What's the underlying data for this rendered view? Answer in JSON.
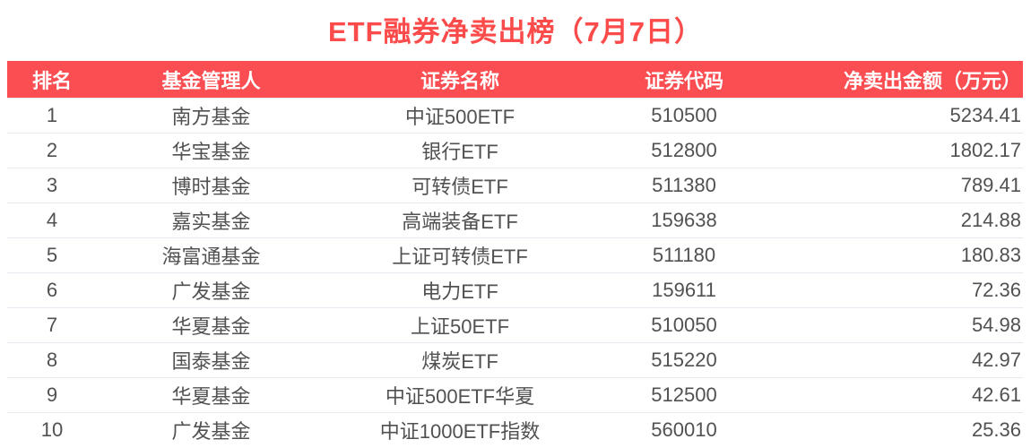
{
  "page": {
    "title": "ETF融券净卖出榜（7月7日）"
  },
  "colors": {
    "title_red": "#fc4b4b",
    "header_bg_red": "#fb4e52",
    "header_text": "#ffffff",
    "body_text": "#515151",
    "row_divider": "#e8e8f1"
  },
  "table": {
    "columns": [
      {
        "key": "rank",
        "label": "排名"
      },
      {
        "key": "manager",
        "label": "基金管理人"
      },
      {
        "key": "name",
        "label": "证券名称"
      },
      {
        "key": "code",
        "label": "证券代码"
      },
      {
        "key": "amount",
        "label": "净卖出金额（万元）"
      }
    ],
    "rows": [
      {
        "rank": "1",
        "manager": "南方基金",
        "name": "中证500ETF",
        "code": "510500",
        "amount": "5234.41"
      },
      {
        "rank": "2",
        "manager": "华宝基金",
        "name": "银行ETF",
        "code": "512800",
        "amount": "1802.17"
      },
      {
        "rank": "3",
        "manager": "博时基金",
        "name": "可转债ETF",
        "code": "511380",
        "amount": "789.41"
      },
      {
        "rank": "4",
        "manager": "嘉实基金",
        "name": "高端装备ETF",
        "code": "159638",
        "amount": "214.88"
      },
      {
        "rank": "5",
        "manager": "海富通基金",
        "name": "上证可转债ETF",
        "code": "511180",
        "amount": "180.83"
      },
      {
        "rank": "6",
        "manager": "广发基金",
        "name": "电力ETF",
        "code": "159611",
        "amount": "72.36"
      },
      {
        "rank": "7",
        "manager": "华夏基金",
        "name": "上证50ETF",
        "code": "510050",
        "amount": "54.98"
      },
      {
        "rank": "8",
        "manager": "国泰基金",
        "name": "煤炭ETF",
        "code": "515220",
        "amount": "42.97"
      },
      {
        "rank": "9",
        "manager": "华夏基金",
        "name": "中证500ETF华夏",
        "code": "512500",
        "amount": "42.61"
      },
      {
        "rank": "10",
        "manager": "广发基金",
        "name": "中证1000ETF指数",
        "code": "560010",
        "amount": "25.36"
      }
    ]
  },
  "chart_data": {
    "type": "table",
    "title": "ETF融券净卖出榜（7月7日）",
    "columns": [
      "排名",
      "基金管理人",
      "证券名称",
      "证券代码",
      "净卖出金额（万元）"
    ],
    "rows": [
      [
        1,
        "南方基金",
        "中证500ETF",
        "510500",
        5234.41
      ],
      [
        2,
        "华宝基金",
        "银行ETF",
        "512800",
        1802.17
      ],
      [
        3,
        "博时基金",
        "可转债ETF",
        "511380",
        789.41
      ],
      [
        4,
        "嘉实基金",
        "高端装备ETF",
        "159638",
        214.88
      ],
      [
        5,
        "海富通基金",
        "上证可转债ETF",
        "511180",
        180.83
      ],
      [
        6,
        "广发基金",
        "电力ETF",
        "159611",
        72.36
      ],
      [
        7,
        "华夏基金",
        "上证50ETF",
        "510050",
        54.98
      ],
      [
        8,
        "国泰基金",
        "煤炭ETF",
        "515220",
        42.97
      ],
      [
        9,
        "华夏基金",
        "中证500ETF华夏",
        "512500",
        42.61
      ],
      [
        10,
        "广发基金",
        "中证1000ETF指数",
        "560010",
        25.36
      ]
    ]
  }
}
